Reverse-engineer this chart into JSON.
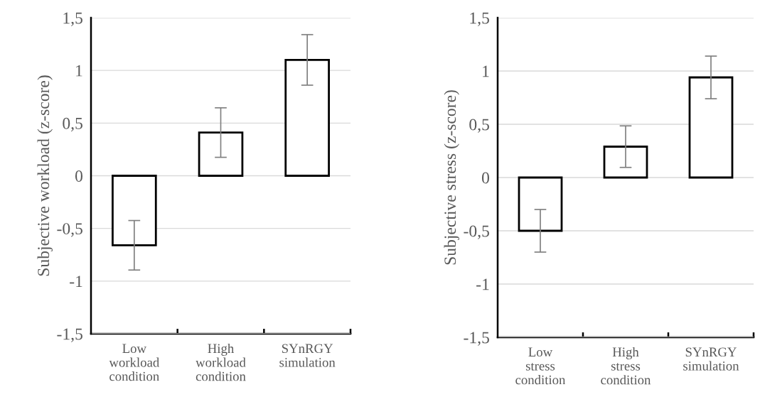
{
  "chart_data": [
    {
      "type": "bar",
      "ylabel": "Subjective workload (z-score)",
      "categories": [
        "Low\nworkload\ncondition",
        "High\nworkload\ncondition",
        "SYnRGY\nsimulation"
      ],
      "values": [
        -0.66,
        0.41,
        1.1
      ],
      "errors": [
        0.235,
        0.235,
        0.24
      ],
      "color": "#ffffff",
      "ylim": [
        -1.5,
        1.5
      ],
      "yticks": [
        {
          "value": -1.5,
          "label": "-1,5"
        },
        -1,
        {
          "value": -0.5,
          "label": "-0,5"
        },
        0,
        {
          "value": 0.5,
          "label": "0,5"
        },
        1,
        {
          "value": 1.5,
          "label": "1,5"
        }
      ],
      "grid": "y"
    },
    {
      "type": "bar",
      "ylabel": "Subjective stress (z-score)",
      "categories": [
        "Low\nstress\ncondition",
        "High\nstress\ncondition",
        "SYnRGY\nsimulation"
      ],
      "values": [
        -0.5,
        0.29,
        0.94
      ],
      "errors": [
        0.2,
        0.195,
        0.2
      ],
      "color": "#ffffff",
      "ylim": [
        -1.5,
        1.5
      ],
      "yticks": [
        {
          "value": -1.5,
          "label": "-1,5"
        },
        -1,
        {
          "value": -0.5,
          "label": "-0,5"
        },
        0,
        {
          "value": 0.5,
          "label": "0,5"
        },
        1,
        {
          "value": 1.5,
          "label": "1,5"
        }
      ],
      "grid": "y"
    }
  ]
}
